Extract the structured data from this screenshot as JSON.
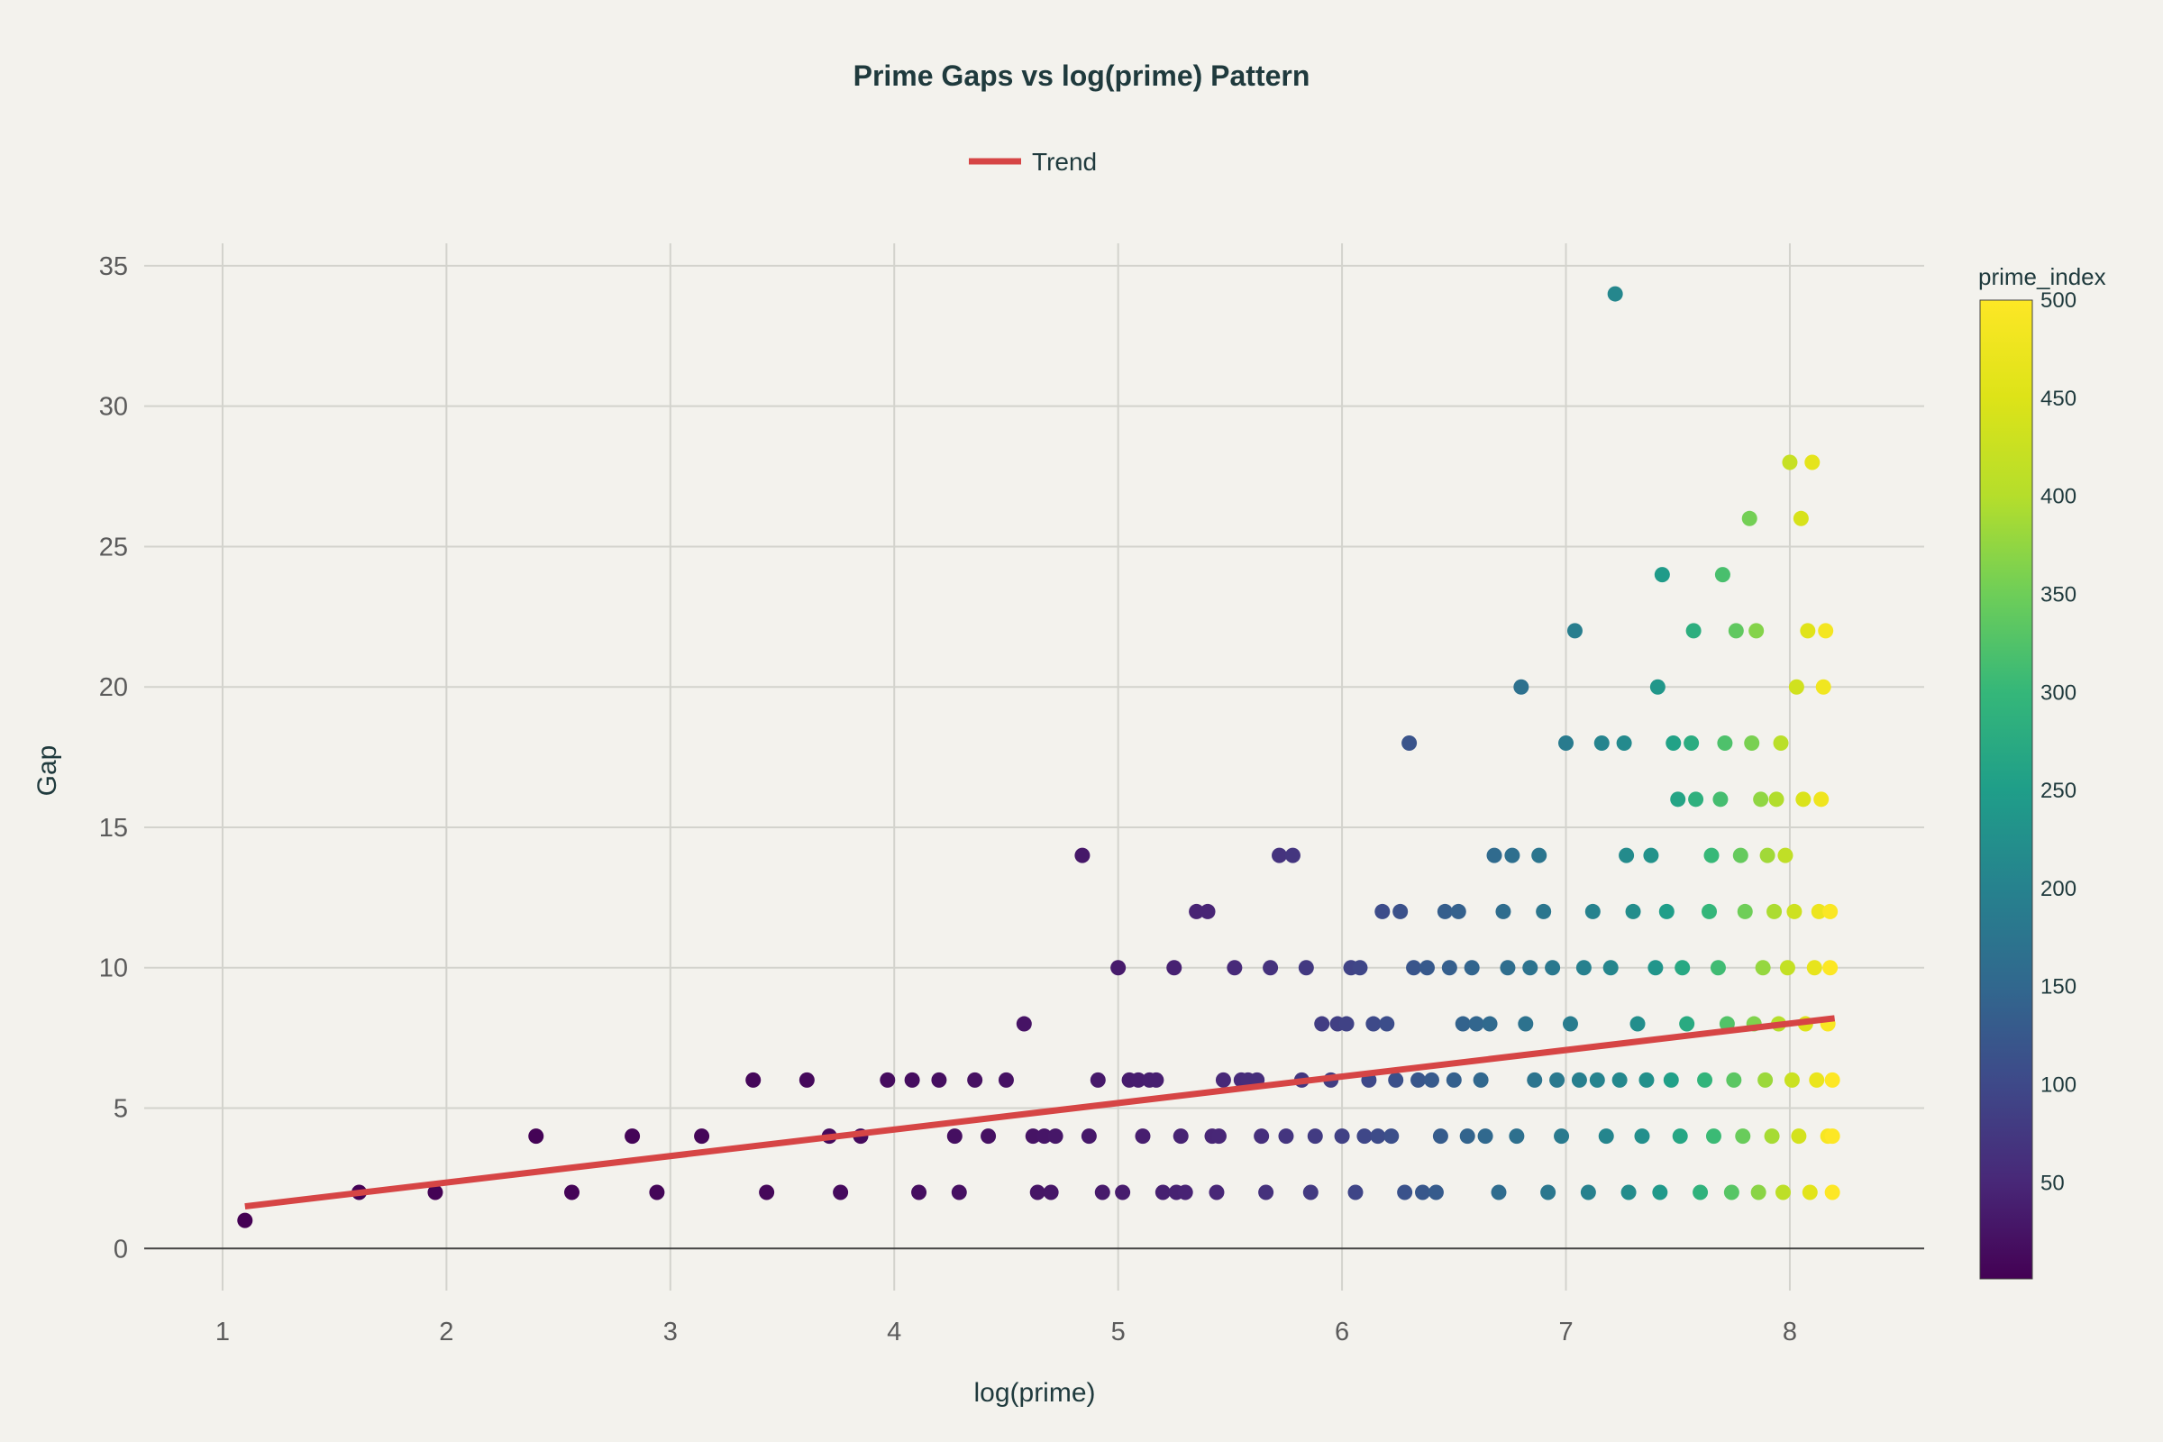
{
  "chart_data": {
    "type": "scatter",
    "title": "Prime Gaps vs log(prime) Pattern",
    "xlabel": "log(prime)",
    "ylabel": "Gap",
    "xlim": [
      0.65,
      8.6
    ],
    "ylim": [
      -1.5,
      35.8
    ],
    "x_ticks": [
      1,
      2,
      3,
      4,
      5,
      6,
      7,
      8
    ],
    "y_ticks": [
      0,
      5,
      10,
      15,
      20,
      25,
      30,
      35
    ],
    "grid": true,
    "legend": {
      "position": "top-center",
      "entries": [
        {
          "name": "Trend",
          "color": "#d64545"
        }
      ]
    },
    "colorbar": {
      "title": "prime_index",
      "range": [
        1,
        500
      ],
      "ticks": [
        50,
        100,
        150,
        200,
        250,
        300,
        350,
        400,
        450,
        500
      ],
      "colorscale": "Viridis"
    },
    "trend": {
      "name": "Trend",
      "color": "#d64545",
      "x": [
        1.1,
        8.2
      ],
      "y": [
        1.5,
        8.2
      ]
    },
    "points": [
      [
        1.1,
        1,
        1
      ],
      [
        1.61,
        2,
        2
      ],
      [
        1.95,
        2,
        3
      ],
      [
        2.4,
        4,
        4
      ],
      [
        2.56,
        2,
        5
      ],
      [
        2.83,
        4,
        6
      ],
      [
        2.94,
        2,
        7
      ],
      [
        3.14,
        4,
        8
      ],
      [
        3.37,
        6,
        9
      ],
      [
        3.43,
        2,
        10
      ],
      [
        3.61,
        6,
        11
      ],
      [
        3.71,
        4,
        12
      ],
      [
        3.76,
        2,
        13
      ],
      [
        3.85,
        4,
        14
      ],
      [
        3.97,
        6,
        15
      ],
      [
        4.08,
        6,
        16
      ],
      [
        4.11,
        2,
        17
      ],
      [
        4.2,
        6,
        18
      ],
      [
        4.27,
        4,
        19
      ],
      [
        4.29,
        2,
        20
      ],
      [
        4.36,
        6,
        21
      ],
      [
        4.42,
        4,
        22
      ],
      [
        4.5,
        6,
        23
      ],
      [
        4.58,
        8,
        24
      ],
      [
        4.62,
        4,
        25
      ],
      [
        4.64,
        2,
        26
      ],
      [
        4.67,
        4,
        27
      ],
      [
        4.7,
        2,
        28
      ],
      [
        4.72,
        4,
        29
      ],
      [
        4.84,
        14,
        30
      ],
      [
        4.87,
        4,
        31
      ],
      [
        4.91,
        6,
        32
      ],
      [
        4.93,
        2,
        33
      ],
      [
        5.0,
        10,
        34
      ],
      [
        5.02,
        2,
        35
      ],
      [
        5.05,
        6,
        36
      ],
      [
        5.09,
        6,
        37
      ],
      [
        5.11,
        4,
        38
      ],
      [
        5.14,
        6,
        39
      ],
      [
        5.17,
        6,
        40
      ],
      [
        5.2,
        2,
        41
      ],
      [
        5.25,
        10,
        42
      ],
      [
        5.26,
        2,
        43
      ],
      [
        5.28,
        4,
        44
      ],
      [
        5.3,
        2,
        45
      ],
      [
        5.35,
        12,
        46
      ],
      [
        5.4,
        12,
        47
      ],
      [
        5.42,
        4,
        48
      ],
      [
        5.44,
        2,
        49
      ],
      [
        5.45,
        4,
        50
      ],
      [
        5.47,
        6,
        52
      ],
      [
        5.52,
        10,
        54
      ],
      [
        5.55,
        6,
        56
      ],
      [
        5.58,
        6,
        58
      ],
      [
        5.62,
        6,
        60
      ],
      [
        5.64,
        4,
        62
      ],
      [
        5.66,
        2,
        64
      ],
      [
        5.68,
        10,
        66
      ],
      [
        5.72,
        14,
        68
      ],
      [
        5.75,
        4,
        70
      ],
      [
        5.78,
        14,
        72
      ],
      [
        5.82,
        6,
        74
      ],
      [
        5.84,
        10,
        76
      ],
      [
        5.86,
        2,
        78
      ],
      [
        5.88,
        4,
        80
      ],
      [
        5.91,
        8,
        82
      ],
      [
        5.95,
        6,
        84
      ],
      [
        5.98,
        8,
        86
      ],
      [
        6.0,
        4,
        88
      ],
      [
        6.02,
        8,
        90
      ],
      [
        6.04,
        10,
        92
      ],
      [
        6.06,
        2,
        94
      ],
      [
        6.08,
        10,
        96
      ],
      [
        6.1,
        4,
        98
      ],
      [
        6.12,
        6,
        100
      ],
      [
        6.14,
        8,
        102
      ],
      [
        6.16,
        4,
        104
      ],
      [
        6.18,
        12,
        106
      ],
      [
        6.2,
        8,
        108
      ],
      [
        6.22,
        4,
        110
      ],
      [
        6.24,
        6,
        112
      ],
      [
        6.26,
        12,
        114
      ],
      [
        6.28,
        2,
        116
      ],
      [
        6.3,
        18,
        118
      ],
      [
        6.32,
        10,
        120
      ],
      [
        6.34,
        6,
        122
      ],
      [
        6.36,
        2,
        124
      ],
      [
        6.38,
        10,
        126
      ],
      [
        6.4,
        6,
        128
      ],
      [
        6.42,
        2,
        130
      ],
      [
        6.44,
        4,
        132
      ],
      [
        6.46,
        12,
        134
      ],
      [
        6.48,
        10,
        136
      ],
      [
        6.5,
        6,
        138
      ],
      [
        6.52,
        12,
        140
      ],
      [
        6.54,
        8,
        142
      ],
      [
        6.56,
        4,
        144
      ],
      [
        6.58,
        10,
        146
      ],
      [
        6.6,
        8,
        148
      ],
      [
        6.62,
        6,
        150
      ],
      [
        6.64,
        4,
        152
      ],
      [
        6.66,
        8,
        154
      ],
      [
        6.68,
        14,
        156
      ],
      [
        6.7,
        2,
        158
      ],
      [
        6.72,
        12,
        160
      ],
      [
        6.74,
        10,
        162
      ],
      [
        6.76,
        14,
        164
      ],
      [
        6.78,
        4,
        166
      ],
      [
        6.8,
        20,
        168
      ],
      [
        6.82,
        8,
        170
      ],
      [
        6.84,
        10,
        172
      ],
      [
        6.86,
        6,
        174
      ],
      [
        6.88,
        14,
        176
      ],
      [
        6.9,
        12,
        178
      ],
      [
        6.92,
        2,
        180
      ],
      [
        6.94,
        10,
        182
      ],
      [
        6.96,
        6,
        184
      ],
      [
        6.98,
        4,
        186
      ],
      [
        7.0,
        18,
        188
      ],
      [
        7.02,
        8,
        190
      ],
      [
        7.04,
        22,
        192
      ],
      [
        7.06,
        6,
        194
      ],
      [
        7.08,
        10,
        196
      ],
      [
        7.1,
        2,
        198
      ],
      [
        7.12,
        12,
        200
      ],
      [
        7.14,
        6,
        202
      ],
      [
        7.16,
        18,
        204
      ],
      [
        7.18,
        4,
        206
      ],
      [
        7.2,
        10,
        208
      ],
      [
        7.22,
        34,
        210
      ],
      [
        7.24,
        6,
        212
      ],
      [
        7.26,
        18,
        214
      ],
      [
        7.27,
        14,
        216
      ],
      [
        7.28,
        2,
        218
      ],
      [
        7.3,
        12,
        220
      ],
      [
        7.32,
        8,
        222
      ],
      [
        7.34,
        4,
        224
      ],
      [
        7.36,
        6,
        226
      ],
      [
        7.38,
        14,
        230
      ],
      [
        7.4,
        10,
        234
      ],
      [
        7.41,
        20,
        238
      ],
      [
        7.42,
        2,
        242
      ],
      [
        7.43,
        24,
        246
      ],
      [
        7.45,
        12,
        250
      ],
      [
        7.47,
        6,
        254
      ],
      [
        7.48,
        18,
        258
      ],
      [
        7.5,
        16,
        262
      ],
      [
        7.51,
        4,
        266
      ],
      [
        7.52,
        10,
        270
      ],
      [
        7.54,
        8,
        274
      ],
      [
        7.56,
        18,
        278
      ],
      [
        7.57,
        22,
        282
      ],
      [
        7.58,
        16,
        286
      ],
      [
        7.6,
        2,
        290
      ],
      [
        7.62,
        6,
        294
      ],
      [
        7.64,
        12,
        298
      ],
      [
        7.65,
        14,
        302
      ],
      [
        7.66,
        4,
        306
      ],
      [
        7.68,
        10,
        310
      ],
      [
        7.69,
        16,
        314
      ],
      [
        7.7,
        24,
        318
      ],
      [
        7.71,
        18,
        322
      ],
      [
        7.72,
        8,
        326
      ],
      [
        7.74,
        2,
        330
      ],
      [
        7.75,
        6,
        334
      ],
      [
        7.76,
        22,
        338
      ],
      [
        7.78,
        14,
        342
      ],
      [
        7.79,
        4,
        346
      ],
      [
        7.8,
        12,
        350
      ],
      [
        7.82,
        26,
        354
      ],
      [
        7.83,
        18,
        358
      ],
      [
        7.84,
        8,
        362
      ],
      [
        7.85,
        22,
        366
      ],
      [
        7.86,
        2,
        370
      ],
      [
        7.87,
        16,
        374
      ],
      [
        7.88,
        10,
        378
      ],
      [
        7.89,
        6,
        382
      ],
      [
        7.9,
        14,
        386
      ],
      [
        7.92,
        4,
        390
      ],
      [
        7.93,
        12,
        394
      ],
      [
        7.94,
        16,
        398
      ],
      [
        7.95,
        8,
        402
      ],
      [
        7.96,
        18,
        406
      ],
      [
        7.97,
        2,
        410
      ],
      [
        7.98,
        14,
        414
      ],
      [
        7.99,
        10,
        418
      ],
      [
        8.0,
        28,
        422
      ],
      [
        8.01,
        6,
        426
      ],
      [
        8.02,
        12,
        430
      ],
      [
        8.03,
        20,
        434
      ],
      [
        8.04,
        4,
        438
      ],
      [
        8.05,
        26,
        442
      ],
      [
        8.06,
        16,
        446
      ],
      [
        8.07,
        8,
        450
      ],
      [
        8.08,
        22,
        454
      ],
      [
        8.09,
        2,
        458
      ],
      [
        8.1,
        28,
        462
      ],
      [
        8.11,
        10,
        466
      ],
      [
        8.12,
        6,
        470
      ],
      [
        8.13,
        12,
        474
      ],
      [
        8.14,
        16,
        478
      ],
      [
        8.15,
        20,
        482
      ],
      [
        8.16,
        22,
        486
      ],
      [
        8.17,
        4,
        490
      ],
      [
        8.17,
        8,
        494
      ],
      [
        8.18,
        12,
        496
      ],
      [
        8.18,
        10,
        498
      ],
      [
        8.19,
        6,
        500
      ],
      [
        8.19,
        2,
        500
      ],
      [
        8.19,
        4,
        500
      ]
    ]
  }
}
